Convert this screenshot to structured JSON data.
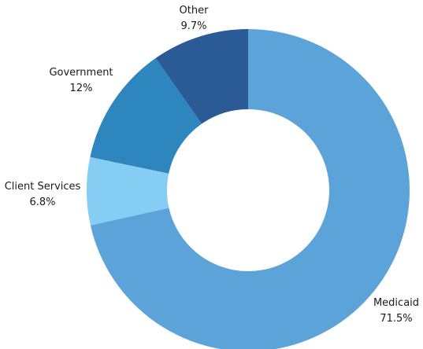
{
  "chart_data": {
    "type": "pie",
    "donut": true,
    "title": "",
    "slices": [
      {
        "name": "Medicaid",
        "value": 71.5,
        "label": "71.5%",
        "color": "#5BA3D9"
      },
      {
        "name": "Client Services",
        "value": 6.8,
        "label": "6.8%",
        "color": "#86CDF3"
      },
      {
        "name": "Government",
        "value": 12,
        "label": "12%",
        "color": "#2E86BE"
      },
      {
        "name": "Other",
        "value": 9.7,
        "label": "9.7%",
        "color": "#2A5B97"
      }
    ]
  }
}
